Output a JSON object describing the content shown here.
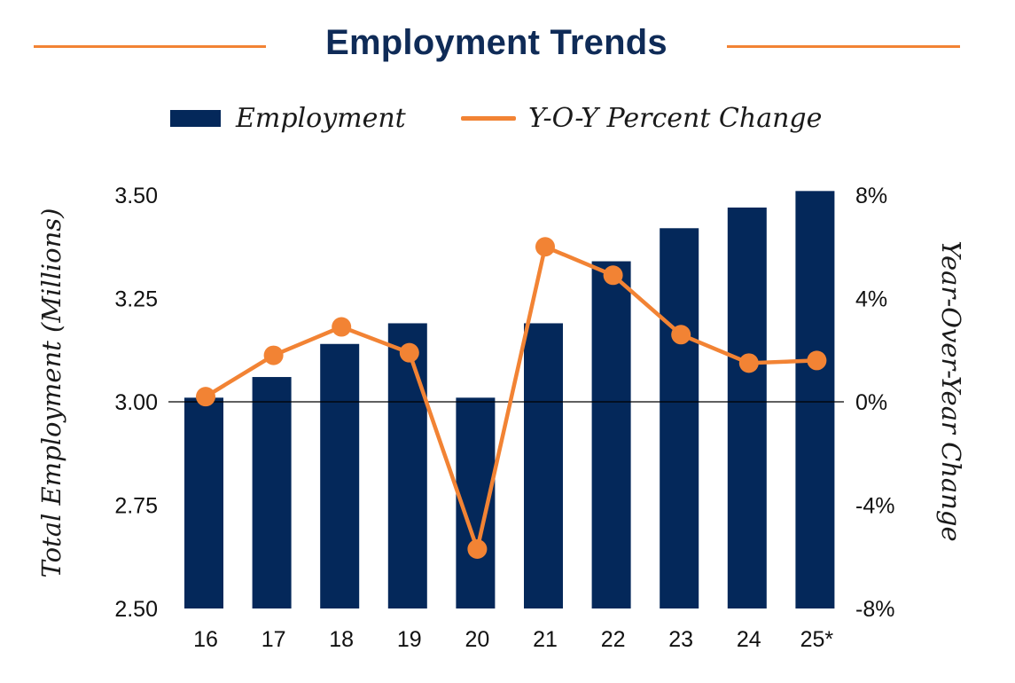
{
  "chart_data": {
    "type": "bar",
    "title": "Employment Trends",
    "categories": [
      "16",
      "17",
      "18",
      "19",
      "20",
      "21",
      "22",
      "23",
      "24",
      "25*"
    ],
    "series": [
      {
        "name": "Employment",
        "type": "bar",
        "axis": "left",
        "color": "#04285a",
        "values": [
          3.01,
          3.06,
          3.14,
          3.19,
          3.01,
          3.19,
          3.34,
          3.42,
          3.47,
          3.51
        ]
      },
      {
        "name": "Y-O-Y Percent Change",
        "type": "line",
        "axis": "right",
        "color": "#f28334",
        "values": [
          0.2,
          1.8,
          2.9,
          1.9,
          -5.7,
          6.0,
          4.9,
          2.6,
          1.5,
          1.6
        ]
      }
    ],
    "ylabel": "Total Employment (Millions)",
    "ylim": [
      2.5,
      3.5
    ],
    "yticks": [
      "3.50",
      "3.25",
      "3.00",
      "2.75",
      "2.50"
    ],
    "y2label": "Year-Over-Year Change",
    "y2lim": [
      -8,
      8
    ],
    "y2ticks": [
      "8%",
      "4%",
      "0%",
      "-4%",
      "-8%"
    ],
    "reference_line_y": 3.0,
    "legend_position": "top-center",
    "grid": false
  }
}
